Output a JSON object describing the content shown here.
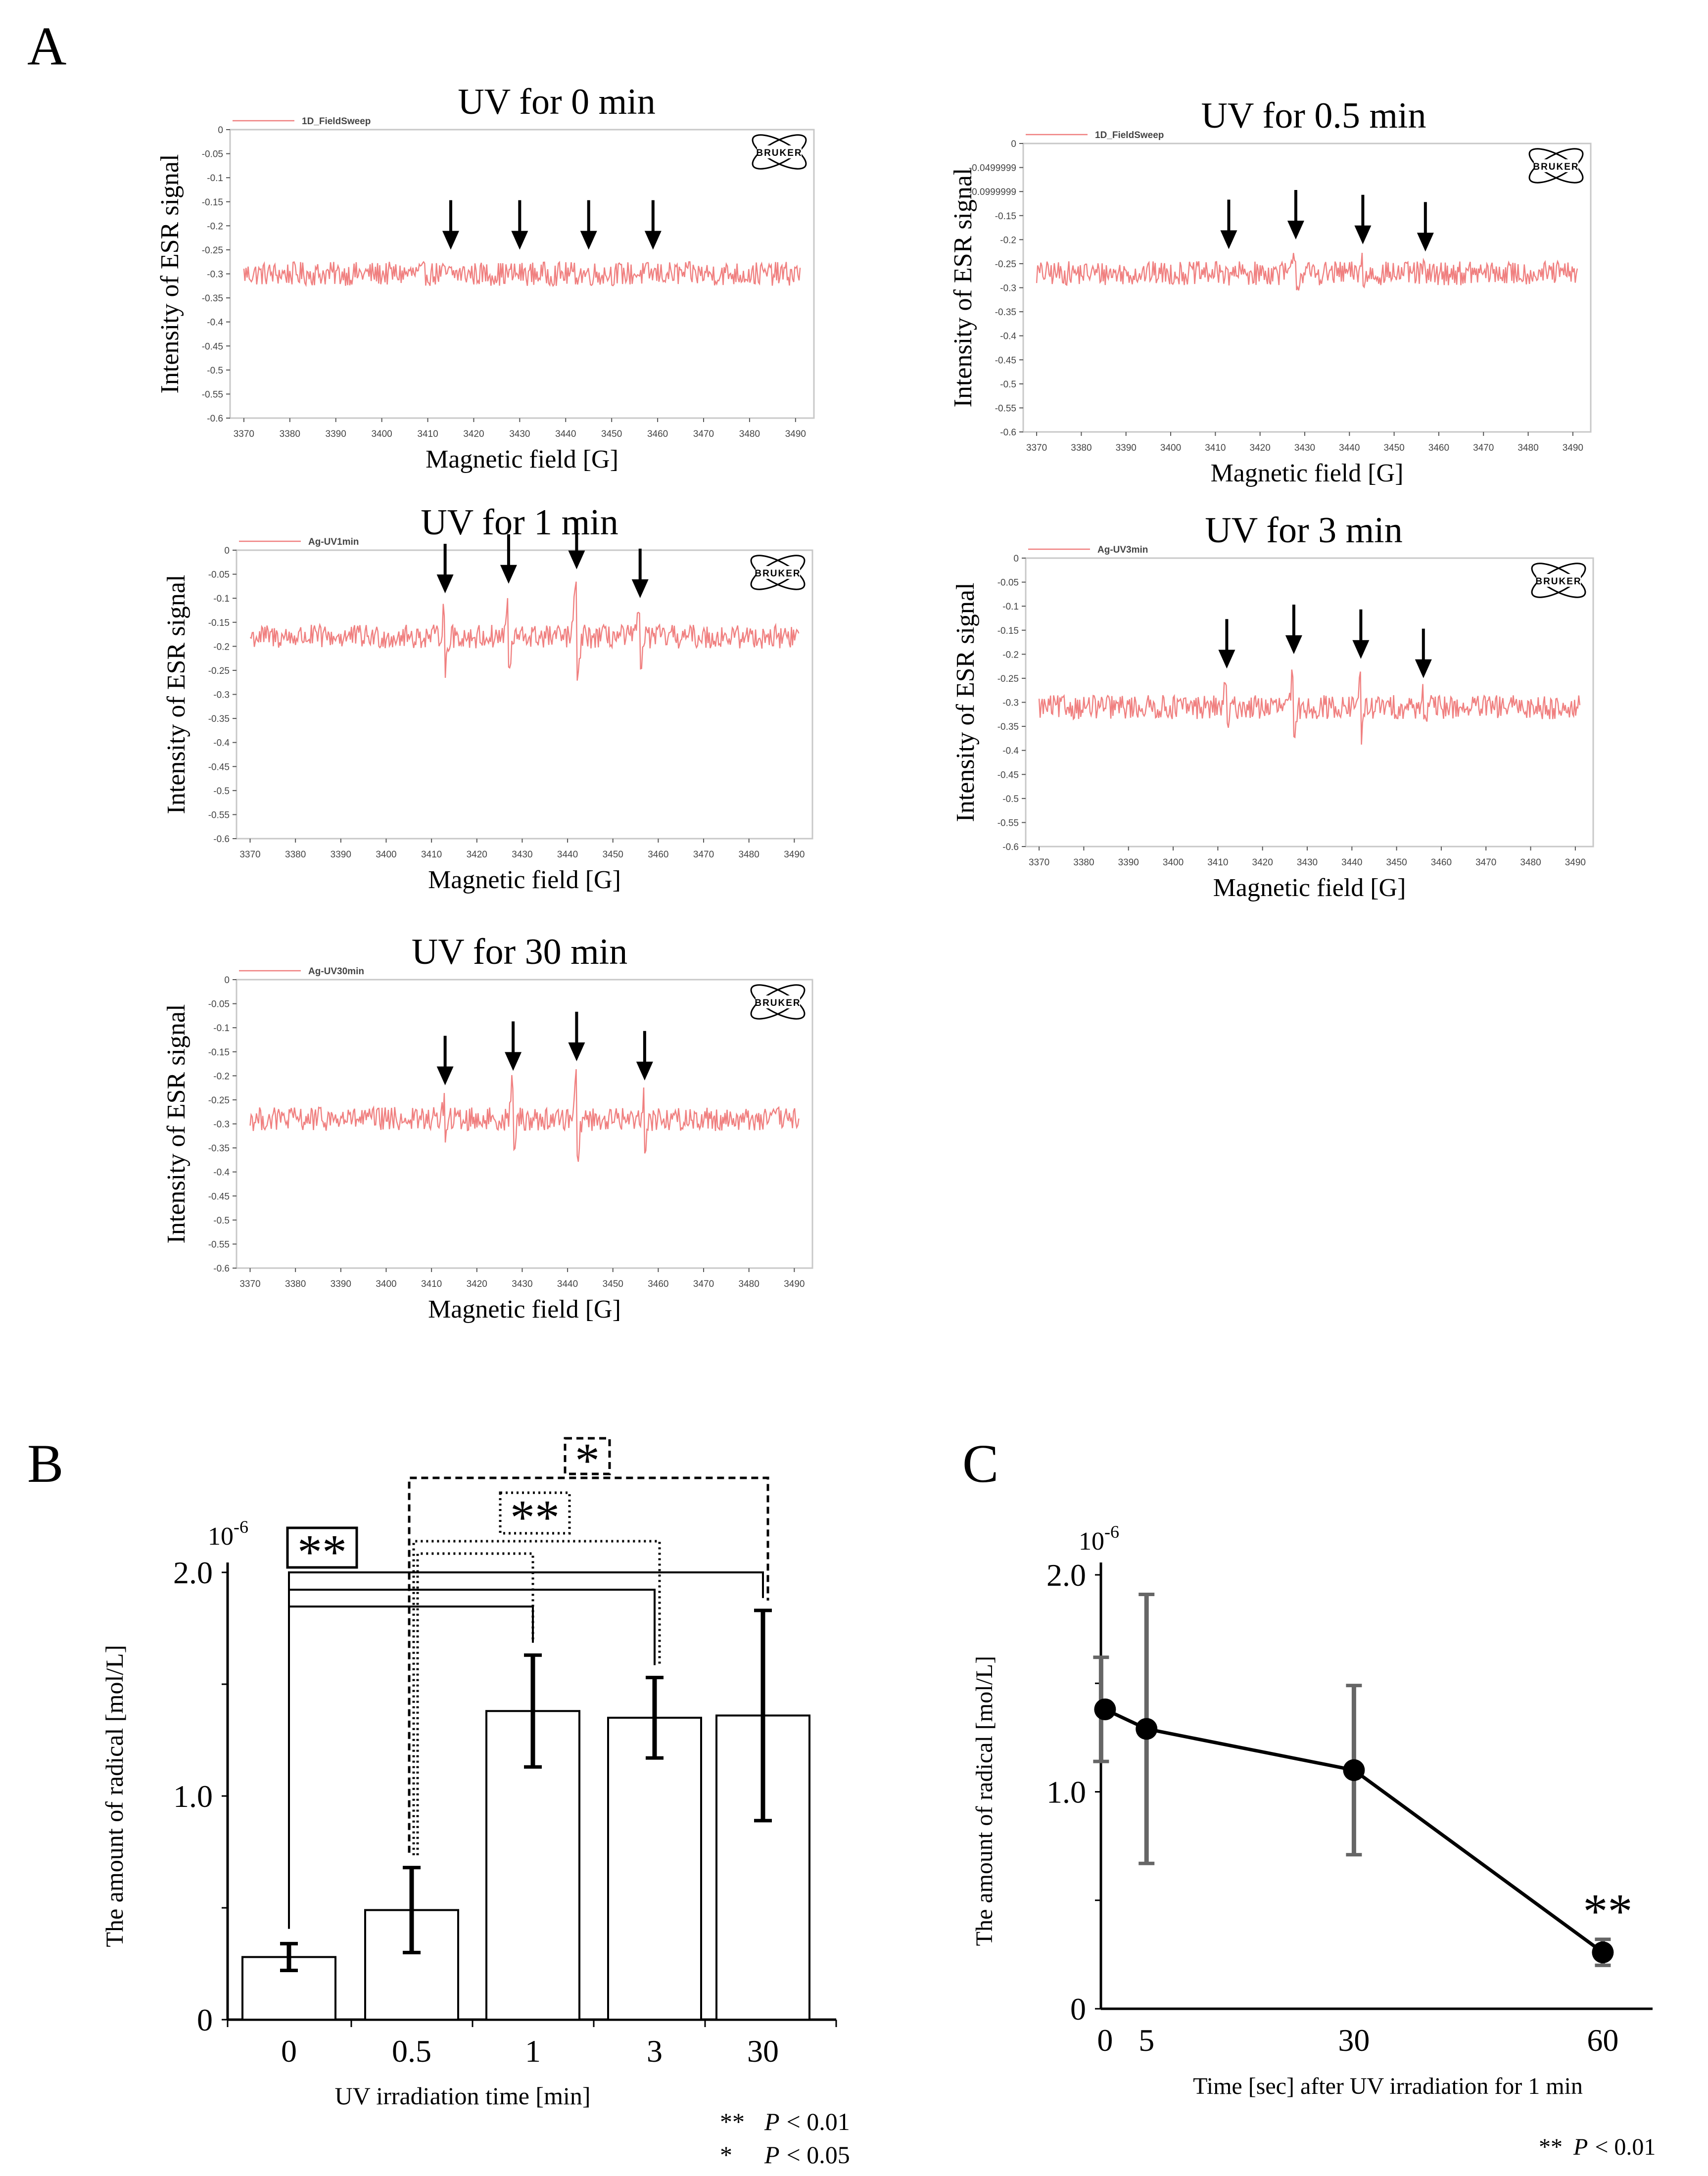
{
  "figure": {
    "panel_labels": {
      "a": "A",
      "b": "B",
      "c": "C"
    }
  },
  "chart_data": [
    {
      "id": "A1",
      "type": "line",
      "title": "UV for 0 min",
      "legend": "1D_FieldSweep",
      "legend_position": "top-left",
      "xlabel": "Magnetic field [G]",
      "ylabel": "Intensity of ESR signal",
      "xlim": [
        3367,
        3494
      ],
      "ylim": [
        -0.6,
        0
      ],
      "xticks": [
        "3370",
        "3380",
        "3390",
        "3400",
        "3410",
        "3420",
        "3430",
        "3440",
        "3450",
        "3460",
        "3470",
        "3480",
        "3490"
      ],
      "yticks": [
        "0",
        "-0.05",
        "-0.1",
        "-0.15",
        "-0.2",
        "-0.25",
        "-0.3",
        "-0.35",
        "-0.4",
        "-0.45",
        "-0.5",
        "-0.55",
        "-0.6"
      ],
      "baseline": -0.3,
      "noise_amplitude": 0.025,
      "peaks": [],
      "arrows_at_field": [
        3415,
        3430,
        3445,
        3459
      ],
      "line_color": "#f08080",
      "logo_text": "BRUKER"
    },
    {
      "id": "A2",
      "type": "line",
      "title": "UV for 0.5 min",
      "legend": "1D_FieldSweep",
      "legend_position": "top-left",
      "xlabel": "Magnetic field [G]",
      "ylabel": "Intensity of ESR signal",
      "xlim": [
        3367,
        3494
      ],
      "ylim": [
        -0.6,
        0
      ],
      "xticks": [
        "3370",
        "3380",
        "3390",
        "3400",
        "3410",
        "3420",
        "3430",
        "3440",
        "3450",
        "3460",
        "3470",
        "3480",
        "3490"
      ],
      "yticks": [
        "0",
        "-0.0499999",
        "-0.0999999",
        "-0.15",
        "-0.2",
        "-0.25",
        "-0.3",
        "-0.35",
        "-0.4",
        "-0.45",
        "-0.5",
        "-0.55",
        "-0.6"
      ],
      "baseline": -0.27,
      "noise_amplitude": 0.025,
      "peaks": [
        {
          "x": 3413,
          "amp": 0.02
        },
        {
          "x": 3428,
          "amp": 0.04
        },
        {
          "x": 3443,
          "amp": 0.03
        },
        {
          "x": 3457,
          "amp": 0.015
        }
      ],
      "arrows_at_field": [
        3413,
        3428,
        3443,
        3457
      ],
      "line_color": "#f08080",
      "logo_text": "BRUKER"
    },
    {
      "id": "A3",
      "type": "line",
      "title": "UV for 1 min",
      "legend": "Ag-UV1min",
      "legend_position": "top-left",
      "xlabel": "Magnetic field [G]",
      "ylabel": "Intensity of ESR signal",
      "xlim": [
        3367,
        3494
      ],
      "ylim": [
        -0.6,
        0
      ],
      "xticks": [
        "3370",
        "3380",
        "3390",
        "3400",
        "3410",
        "3420",
        "3430",
        "3440",
        "3450",
        "3460",
        "3470",
        "3480",
        "3490"
      ],
      "yticks": [
        "0",
        "-0.05",
        "-0.1",
        "-0.15",
        "-0.2",
        "-0.25",
        "-0.3",
        "-0.35",
        "-0.4",
        "-0.45",
        "-0.5",
        "-0.55",
        "-0.6"
      ],
      "baseline": -0.18,
      "noise_amplitude": 0.025,
      "peaks": [
        {
          "x": 3413,
          "amp": 0.06
        },
        {
          "x": 3427,
          "amp": 0.08
        },
        {
          "x": 3442,
          "amp": 0.11
        },
        {
          "x": 3456,
          "amp": 0.05
        }
      ],
      "arrows_at_field": [
        3413,
        3427,
        3442,
        3456
      ],
      "line_color": "#f08080",
      "logo_text": "BRUKER"
    },
    {
      "id": "A4",
      "type": "line",
      "title": "UV for 3 min",
      "legend": "Ag-UV3min",
      "legend_position": "top-left",
      "xlabel": "Magnetic field [G]",
      "ylabel": "Intensity of ESR signal",
      "xlim": [
        3367,
        3494
      ],
      "ylim": [
        -0.6,
        0
      ],
      "xticks": [
        "3370",
        "3380",
        "3390",
        "3400",
        "3410",
        "3420",
        "3430",
        "3440",
        "3450",
        "3460",
        "3470",
        "3480",
        "3490"
      ],
      "yticks": [
        "0",
        "-0.05",
        "-0.1",
        "-0.15",
        "-0.2",
        "-0.25",
        "-0.3",
        "-0.35",
        "-0.4",
        "-0.45",
        "-0.5",
        "-0.55",
        "-0.6"
      ],
      "baseline": -0.31,
      "noise_amplitude": 0.025,
      "peaks": [
        {
          "x": 3412,
          "amp": 0.05
        },
        {
          "x": 3427,
          "amp": 0.08
        },
        {
          "x": 3442,
          "amp": 0.07
        },
        {
          "x": 3456,
          "amp": 0.03
        }
      ],
      "arrows_at_field": [
        3412,
        3427,
        3442,
        3456
      ],
      "line_color": "#f08080",
      "logo_text": "BRUKER"
    },
    {
      "id": "A5",
      "type": "line",
      "title": "UV for 30 min",
      "legend": "Ag-UV30min",
      "legend_position": "top-left",
      "xlabel": "Magnetic field [G]",
      "ylabel": "Intensity of ESR signal",
      "xlim": [
        3367,
        3494
      ],
      "ylim": [
        -0.6,
        0
      ],
      "xticks": [
        "3370",
        "3380",
        "3390",
        "3400",
        "3410",
        "3420",
        "3430",
        "3440",
        "3450",
        "3460",
        "3470",
        "3480",
        "3490"
      ],
      "yticks": [
        "0",
        "-0.05",
        "-0.1",
        "-0.15",
        "-0.2",
        "-0.25",
        "-0.3",
        "-0.35",
        "-0.4",
        "-0.45",
        "-0.5",
        "-0.55",
        "-0.6"
      ],
      "baseline": -0.29,
      "noise_amplitude": 0.025,
      "peaks": [
        {
          "x": 3413,
          "amp": 0.04
        },
        {
          "x": 3428,
          "amp": 0.07
        },
        {
          "x": 3442,
          "amp": 0.09
        },
        {
          "x": 3457,
          "amp": 0.05
        }
      ],
      "arrows_at_field": [
        3413,
        3428,
        3442,
        3457
      ],
      "line_color": "#f08080",
      "logo_text": "BRUKER"
    },
    {
      "id": "B",
      "type": "bar",
      "categories": [
        "0",
        "0.5",
        "1",
        "3",
        "30"
      ],
      "values": [
        0.28,
        0.49,
        1.38,
        1.35,
        1.36
      ],
      "errors": [
        0.06,
        0.19,
        0.25,
        0.18,
        0.47
      ],
      "xlabel": "UV irradiation time [min]",
      "ylabel": "The amount of radical [mol/L]",
      "ylim": [
        0,
        2.0
      ],
      "yticks": [
        "0",
        "1.0",
        "2.0"
      ],
      "y_exponent": "10",
      "y_exponent_power": "-6",
      "significance": [
        {
          "label": "**",
          "style": "solid",
          "from": 0,
          "to": [
            2,
            3,
            4
          ]
        },
        {
          "label": "**",
          "style": "dotted",
          "from": 1,
          "to": [
            2,
            3
          ]
        },
        {
          "label": "*",
          "style": "dashed",
          "from": 1,
          "to": [
            4
          ]
        }
      ],
      "footnote_stars": [
        "**",
        "*"
      ],
      "footnote_p": [
        "P",
        "P"
      ],
      "footnote_values": [
        "< 0.01",
        "< 0.05"
      ]
    },
    {
      "id": "C",
      "type": "line",
      "x": [
        0,
        5,
        30,
        60
      ],
      "values": [
        1.38,
        1.29,
        1.1,
        0.26
      ],
      "errors": [
        0.24,
        0.62,
        0.39,
        0.06
      ],
      "xticks": [
        "0",
        "5",
        "30",
        "60"
      ],
      "xlim": [
        -0.5,
        66
      ],
      "xlabel": "Time [sec] after UV irradiation for 1 min",
      "ylabel": "The amount of radical [mol/L]",
      "ylim": [
        0,
        2.0
      ],
      "yticks": [
        "0",
        "1.0",
        "2.0"
      ],
      "y_exponent": "10",
      "y_exponent_power": "-6",
      "annotation": "**",
      "footnote_star": "**",
      "footnote_p": "P",
      "footnote_value": "< 0.01"
    }
  ]
}
